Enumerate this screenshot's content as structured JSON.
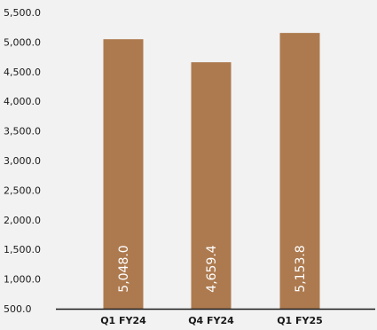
{
  "chart_data": {
    "type": "bar",
    "title": "",
    "xlabel": "",
    "ylabel": "",
    "categories": [
      "Q1 FY24",
      "Q4 FY24",
      "Q1 FY25"
    ],
    "values": [
      5048.0,
      4659.4,
      5153.8
    ],
    "data_labels": [
      "5,048.0",
      "4,659.4",
      "5,153.8"
    ],
    "ylim": [
      500,
      5500
    ],
    "y_ticks": [
      500,
      1000,
      1500,
      2000,
      2500,
      3000,
      3500,
      4000,
      4500,
      5000,
      5500
    ],
    "y_tick_labels": [
      "500.0",
      "1,000.0",
      "1,500.0",
      "2,000.0",
      "2,500.0",
      "3,000.0",
      "3,500.0",
      "4,000.0",
      "4,500.0",
      "5,000.0",
      "5,500.0"
    ],
    "grid": false,
    "legend": "none",
    "data_label_orientation": "vertical",
    "colors": {
      "bar": "#ad7a4f",
      "axis": "#1a1a1a",
      "background": "#f2f2f2",
      "label_on_bar": "#ffffff"
    }
  }
}
